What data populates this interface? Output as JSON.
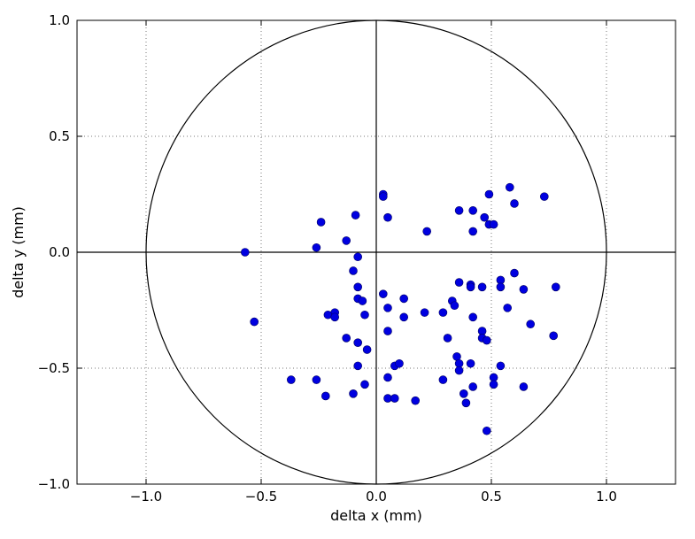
{
  "chart_data": {
    "type": "scatter",
    "title": "",
    "xlabel": "delta x (mm)",
    "ylabel": "delta y (mm)",
    "xlim": [
      -1.3,
      1.3
    ],
    "ylim": [
      -1.0,
      1.0
    ],
    "grid": true,
    "xticks": [
      -1.0,
      -0.5,
      0.0,
      0.5,
      1.0
    ],
    "yticks": [
      -1.0,
      -0.5,
      0.0,
      0.5,
      1.0
    ],
    "xtick_labels": [
      "−1.0",
      "−0.5",
      "0.0",
      "0.5",
      "1.0"
    ],
    "ytick_labels": [
      "−1.0",
      "−0.5",
      "0.0",
      "0.5",
      "1.0"
    ],
    "reference": {
      "circle_radius": 1.0,
      "crosshair": [
        0.0,
        0.0
      ]
    },
    "marker_color": "#0000e0",
    "marker_edge": "#000060",
    "points": [
      [
        0.03,
        0.25
      ],
      [
        0.03,
        0.24
      ],
      [
        0.05,
        0.15
      ],
      [
        0.58,
        0.28
      ],
      [
        0.49,
        0.25
      ],
      [
        0.73,
        0.24
      ],
      [
        0.6,
        0.21
      ],
      [
        0.36,
        0.18
      ],
      [
        0.42,
        0.18
      ],
      [
        0.47,
        0.15
      ],
      [
        0.49,
        0.12
      ],
      [
        0.51,
        0.12
      ],
      [
        0.42,
        0.09
      ],
      [
        0.22,
        0.09
      ],
      [
        -0.09,
        0.16
      ],
      [
        -0.24,
        0.13
      ],
      [
        -0.13,
        0.05
      ],
      [
        -0.26,
        0.02
      ],
      [
        -0.57,
        0.0
      ],
      [
        -0.08,
        -0.02
      ],
      [
        -0.1,
        -0.08
      ],
      [
        -0.08,
        -0.15
      ],
      [
        0.6,
        -0.09
      ],
      [
        0.54,
        -0.12
      ],
      [
        0.54,
        -0.15
      ],
      [
        0.36,
        -0.13
      ],
      [
        0.41,
        -0.14
      ],
      [
        0.41,
        -0.15
      ],
      [
        0.46,
        -0.15
      ],
      [
        0.78,
        -0.15
      ],
      [
        0.64,
        -0.16
      ],
      [
        0.03,
        -0.18
      ],
      [
        -0.08,
        -0.2
      ],
      [
        -0.06,
        -0.21
      ],
      [
        0.12,
        -0.2
      ],
      [
        0.33,
        -0.21
      ],
      [
        0.34,
        -0.23
      ],
      [
        0.05,
        -0.24
      ],
      [
        0.57,
        -0.24
      ],
      [
        -0.18,
        -0.26
      ],
      [
        -0.21,
        -0.27
      ],
      [
        -0.18,
        -0.28
      ],
      [
        -0.05,
        -0.27
      ],
      [
        0.21,
        -0.26
      ],
      [
        0.29,
        -0.26
      ],
      [
        0.12,
        -0.28
      ],
      [
        0.42,
        -0.28
      ],
      [
        -0.53,
        -0.3
      ],
      [
        0.67,
        -0.31
      ],
      [
        0.05,
        -0.34
      ],
      [
        0.46,
        -0.34
      ],
      [
        0.77,
        -0.36
      ],
      [
        0.46,
        -0.37
      ],
      [
        -0.13,
        -0.37
      ],
      [
        0.31,
        -0.37
      ],
      [
        0.48,
        -0.38
      ],
      [
        -0.08,
        -0.39
      ],
      [
        -0.04,
        -0.42
      ],
      [
        0.35,
        -0.45
      ],
      [
        0.36,
        -0.48
      ],
      [
        0.41,
        -0.48
      ],
      [
        0.08,
        -0.49
      ],
      [
        0.1,
        -0.48
      ],
      [
        -0.08,
        -0.49
      ],
      [
        0.54,
        -0.49
      ],
      [
        0.36,
        -0.51
      ],
      [
        0.05,
        -0.54
      ],
      [
        0.51,
        -0.54
      ],
      [
        -0.37,
        -0.55
      ],
      [
        -0.26,
        -0.55
      ],
      [
        0.29,
        -0.55
      ],
      [
        0.51,
        -0.57
      ],
      [
        -0.05,
        -0.57
      ],
      [
        0.42,
        -0.58
      ],
      [
        0.64,
        -0.58
      ],
      [
        -0.1,
        -0.61
      ],
      [
        0.38,
        -0.61
      ],
      [
        -0.22,
        -0.62
      ],
      [
        0.05,
        -0.63
      ],
      [
        0.08,
        -0.63
      ],
      [
        0.17,
        -0.64
      ],
      [
        0.39,
        -0.65
      ],
      [
        0.48,
        -0.77
      ]
    ]
  }
}
